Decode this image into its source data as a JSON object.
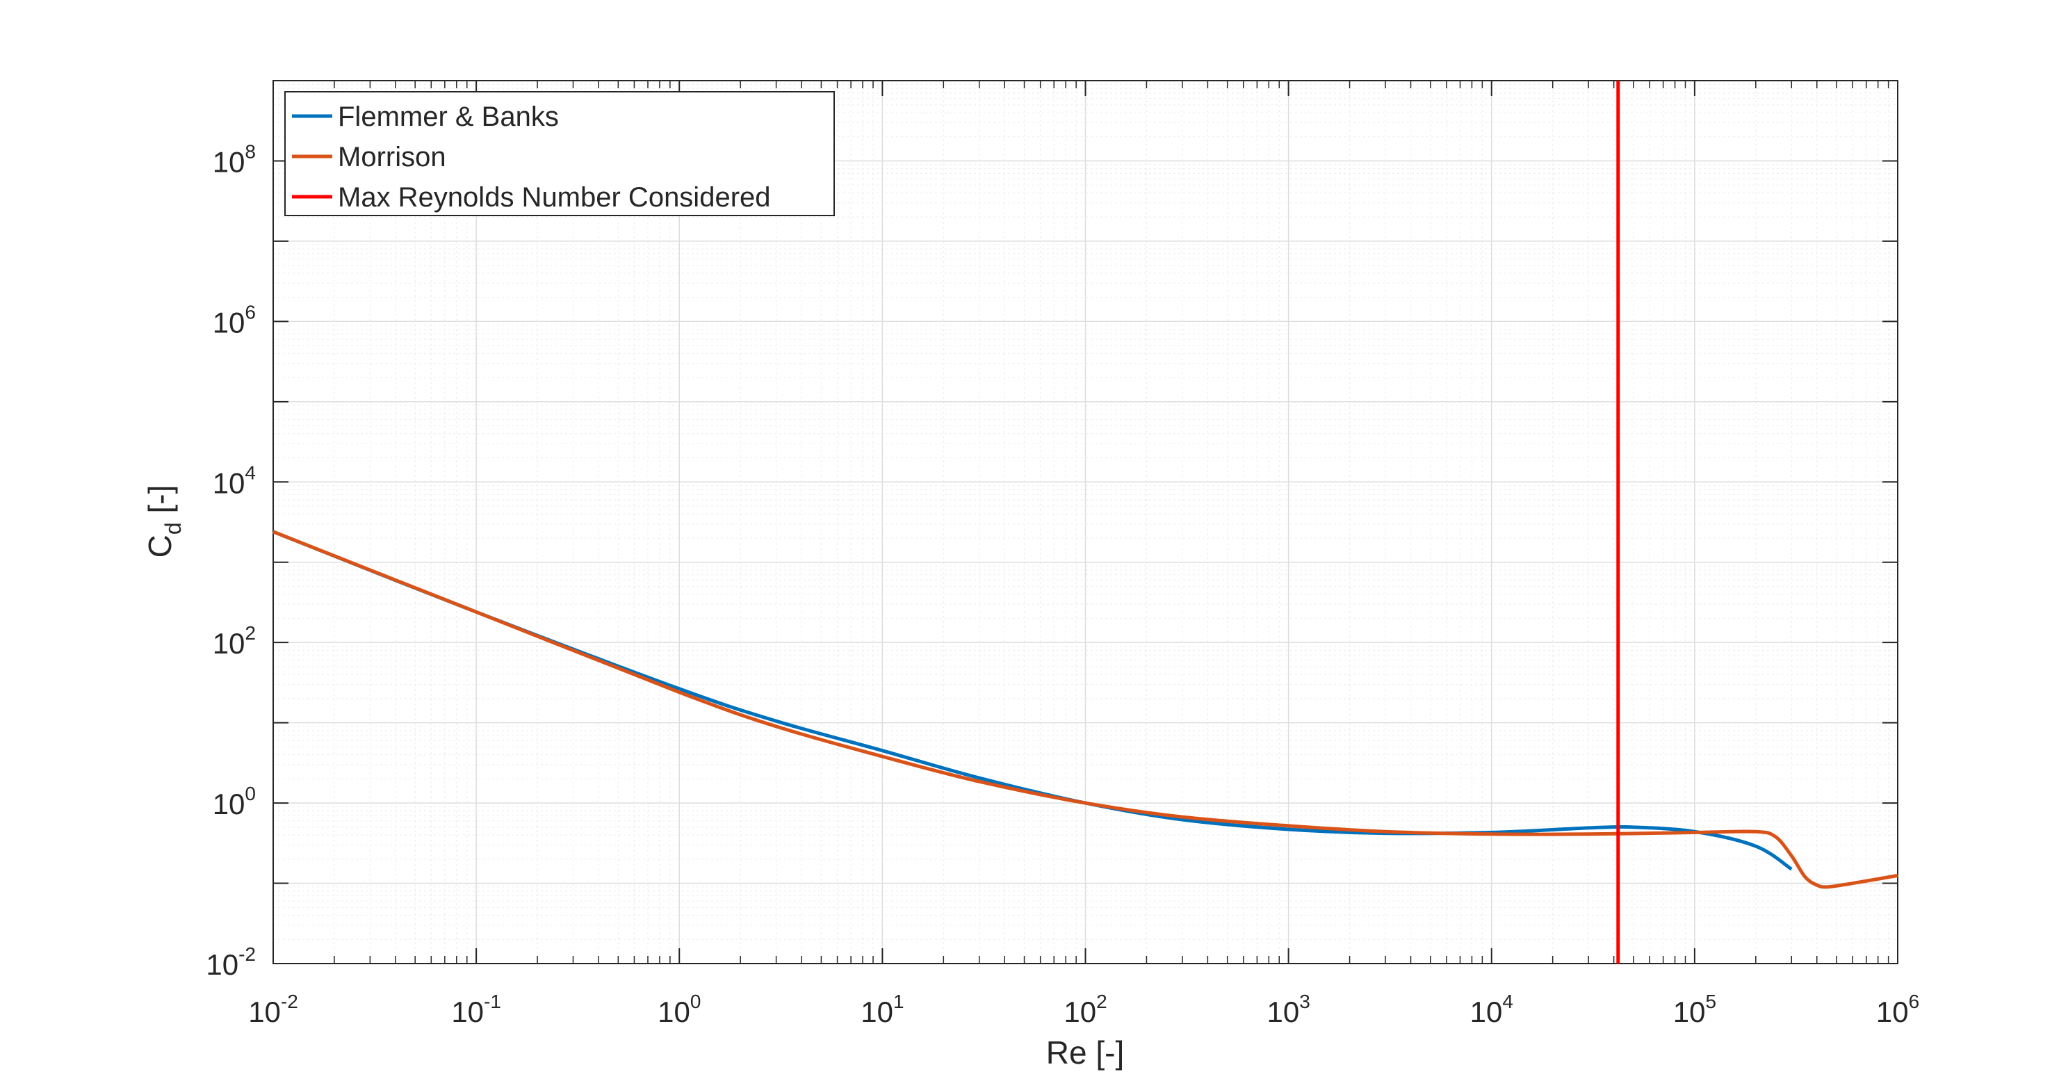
{
  "chart_data": {
    "type": "line",
    "title": "",
    "xlabel": "Re [-]",
    "ylabel": "C",
    "ylabel_subscript": "d",
    "ylabel_suffix": " [-]",
    "xscale": "log",
    "yscale": "log",
    "xlim": [
      0.01,
      1000000
    ],
    "ylim": [
      0.01,
      1000000000
    ],
    "grid": true,
    "legend_position": "top-left",
    "xticks": [
      {
        "base": "10",
        "exp": "-2",
        "value": 0.01
      },
      {
        "base": "10",
        "exp": "-1",
        "value": 0.1
      },
      {
        "base": "10",
        "exp": "0",
        "value": 1
      },
      {
        "base": "10",
        "exp": "1",
        "value": 10
      },
      {
        "base": "10",
        "exp": "2",
        "value": 100
      },
      {
        "base": "10",
        "exp": "3",
        "value": 1000
      },
      {
        "base": "10",
        "exp": "4",
        "value": 10000
      },
      {
        "base": "10",
        "exp": "5",
        "value": 100000
      },
      {
        "base": "10",
        "exp": "6",
        "value": 1000000
      }
    ],
    "yticks": [
      {
        "base": "10",
        "exp": "-2",
        "value": 0.01
      },
      {
        "base": "10",
        "exp": "0",
        "value": 1
      },
      {
        "base": "10",
        "exp": "2",
        "value": 100
      },
      {
        "base": "10",
        "exp": "4",
        "value": 10000
      },
      {
        "base": "10",
        "exp": "6",
        "value": 1000000
      },
      {
        "base": "10",
        "exp": "8",
        "value": 100000000
      }
    ],
    "series": [
      {
        "name": "Flemmer & Banks",
        "color": "#0072BD",
        "x": [
          0.01,
          0.1,
          1,
          3,
          10,
          30,
          100,
          300,
          1000,
          3000,
          10000,
          30000,
          50000,
          100000,
          200000,
          300000
        ],
        "y": [
          2400,
          240,
          26.5,
          10.5,
          4.5,
          2.05,
          1.0,
          0.62,
          0.47,
          0.42,
          0.43,
          0.49,
          0.5,
          0.44,
          0.29,
          0.15
        ]
      },
      {
        "name": "Morrison",
        "color": "#D95319",
        "x": [
          0.01,
          0.1,
          1,
          3,
          10,
          30,
          100,
          300,
          1000,
          3000,
          10000,
          30000,
          100000,
          200000,
          250000,
          300000,
          350000,
          400000,
          450000,
          600000,
          1000000
        ],
        "y": [
          2400,
          240,
          24,
          9.0,
          3.8,
          1.85,
          1.0,
          0.67,
          0.52,
          0.44,
          0.41,
          0.41,
          0.43,
          0.44,
          0.38,
          0.22,
          0.12,
          0.095,
          0.09,
          0.1,
          0.125
        ]
      },
      {
        "name": "Max Reynolds Number Considered",
        "color": "#FF0000",
        "type": "vertical-line",
        "x_value": 42000
      }
    ]
  }
}
